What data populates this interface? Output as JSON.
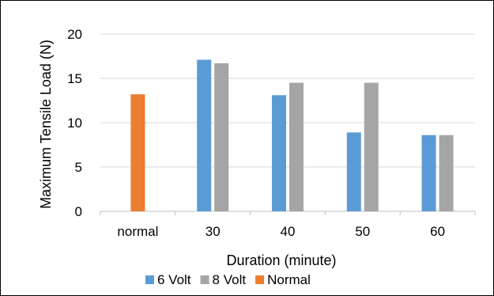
{
  "chart_data": {
    "type": "bar",
    "categories": [
      "normal",
      "30",
      "40",
      "50",
      "60"
    ],
    "series": [
      {
        "name": "6 Volt",
        "values": [
          null,
          17.1,
          13.1,
          8.9,
          8.6
        ],
        "color": "#5B9BD5"
      },
      {
        "name": "8 Volt",
        "values": [
          null,
          16.7,
          14.5,
          14.5,
          8.6
        ],
        "color": "#A5A5A5"
      },
      {
        "name": "Normal",
        "values": [
          13.2,
          null,
          null,
          null,
          null
        ],
        "color": "#ED7D31"
      }
    ],
    "title": "",
    "xlabel": "Duration (minute)",
    "ylabel": "Maximum Tensile Load (N)",
    "ylim": [
      0,
      20
    ],
    "yticks": [
      0,
      5,
      10,
      15,
      20
    ],
    "grid": true,
    "legend": "bottom"
  }
}
